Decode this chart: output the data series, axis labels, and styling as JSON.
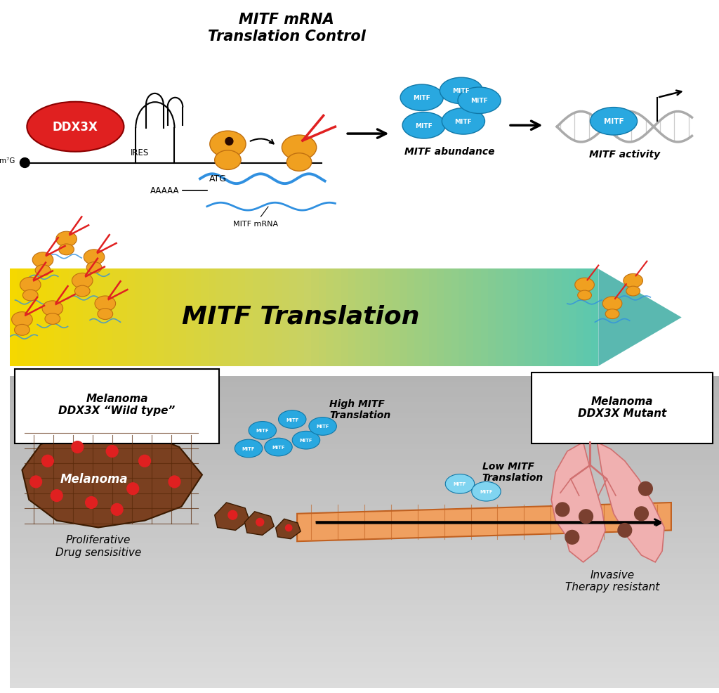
{
  "bg_color_top": "#ffffff",
  "bg_color_bottom": "#c0c0c0",
  "mitf_blue": "#29a8e0",
  "ddx3x_red": "#e02020",
  "melanoma_brown": "#7a4020",
  "ribosome_orange": "#f0a020",
  "rna_blue": "#3090e0",
  "title_top": "MITF mRNA\nTranslation Control",
  "label_mitf_abundance": "MITF abundance",
  "label_mitf_activity": "MITF activity",
  "label_mitf_translation": "MITF Translation",
  "label_wildtype": "Melanoma\nDDX3X “Wild type”",
  "label_mutant": "Melanoma\nDDX3X Mutant",
  "label_high_mitf": "High MITF\nTranslation",
  "label_low_mitf": "Low MITF\nTranslation",
  "label_proliferative": "Proliferative\nDrug sensisitive",
  "label_invasive": "Invasive\nTherapy resistant",
  "label_melanoma": "Melanoma",
  "label_atg": "ATG",
  "label_ires": "IRES",
  "label_m7g": "m⁷G",
  "label_aaaaa": "AAAAA",
  "label_mitf_mrna_small": "MITF mRNA",
  "label_ddx3x": "DDX3X",
  "label_mitf": "MITF"
}
